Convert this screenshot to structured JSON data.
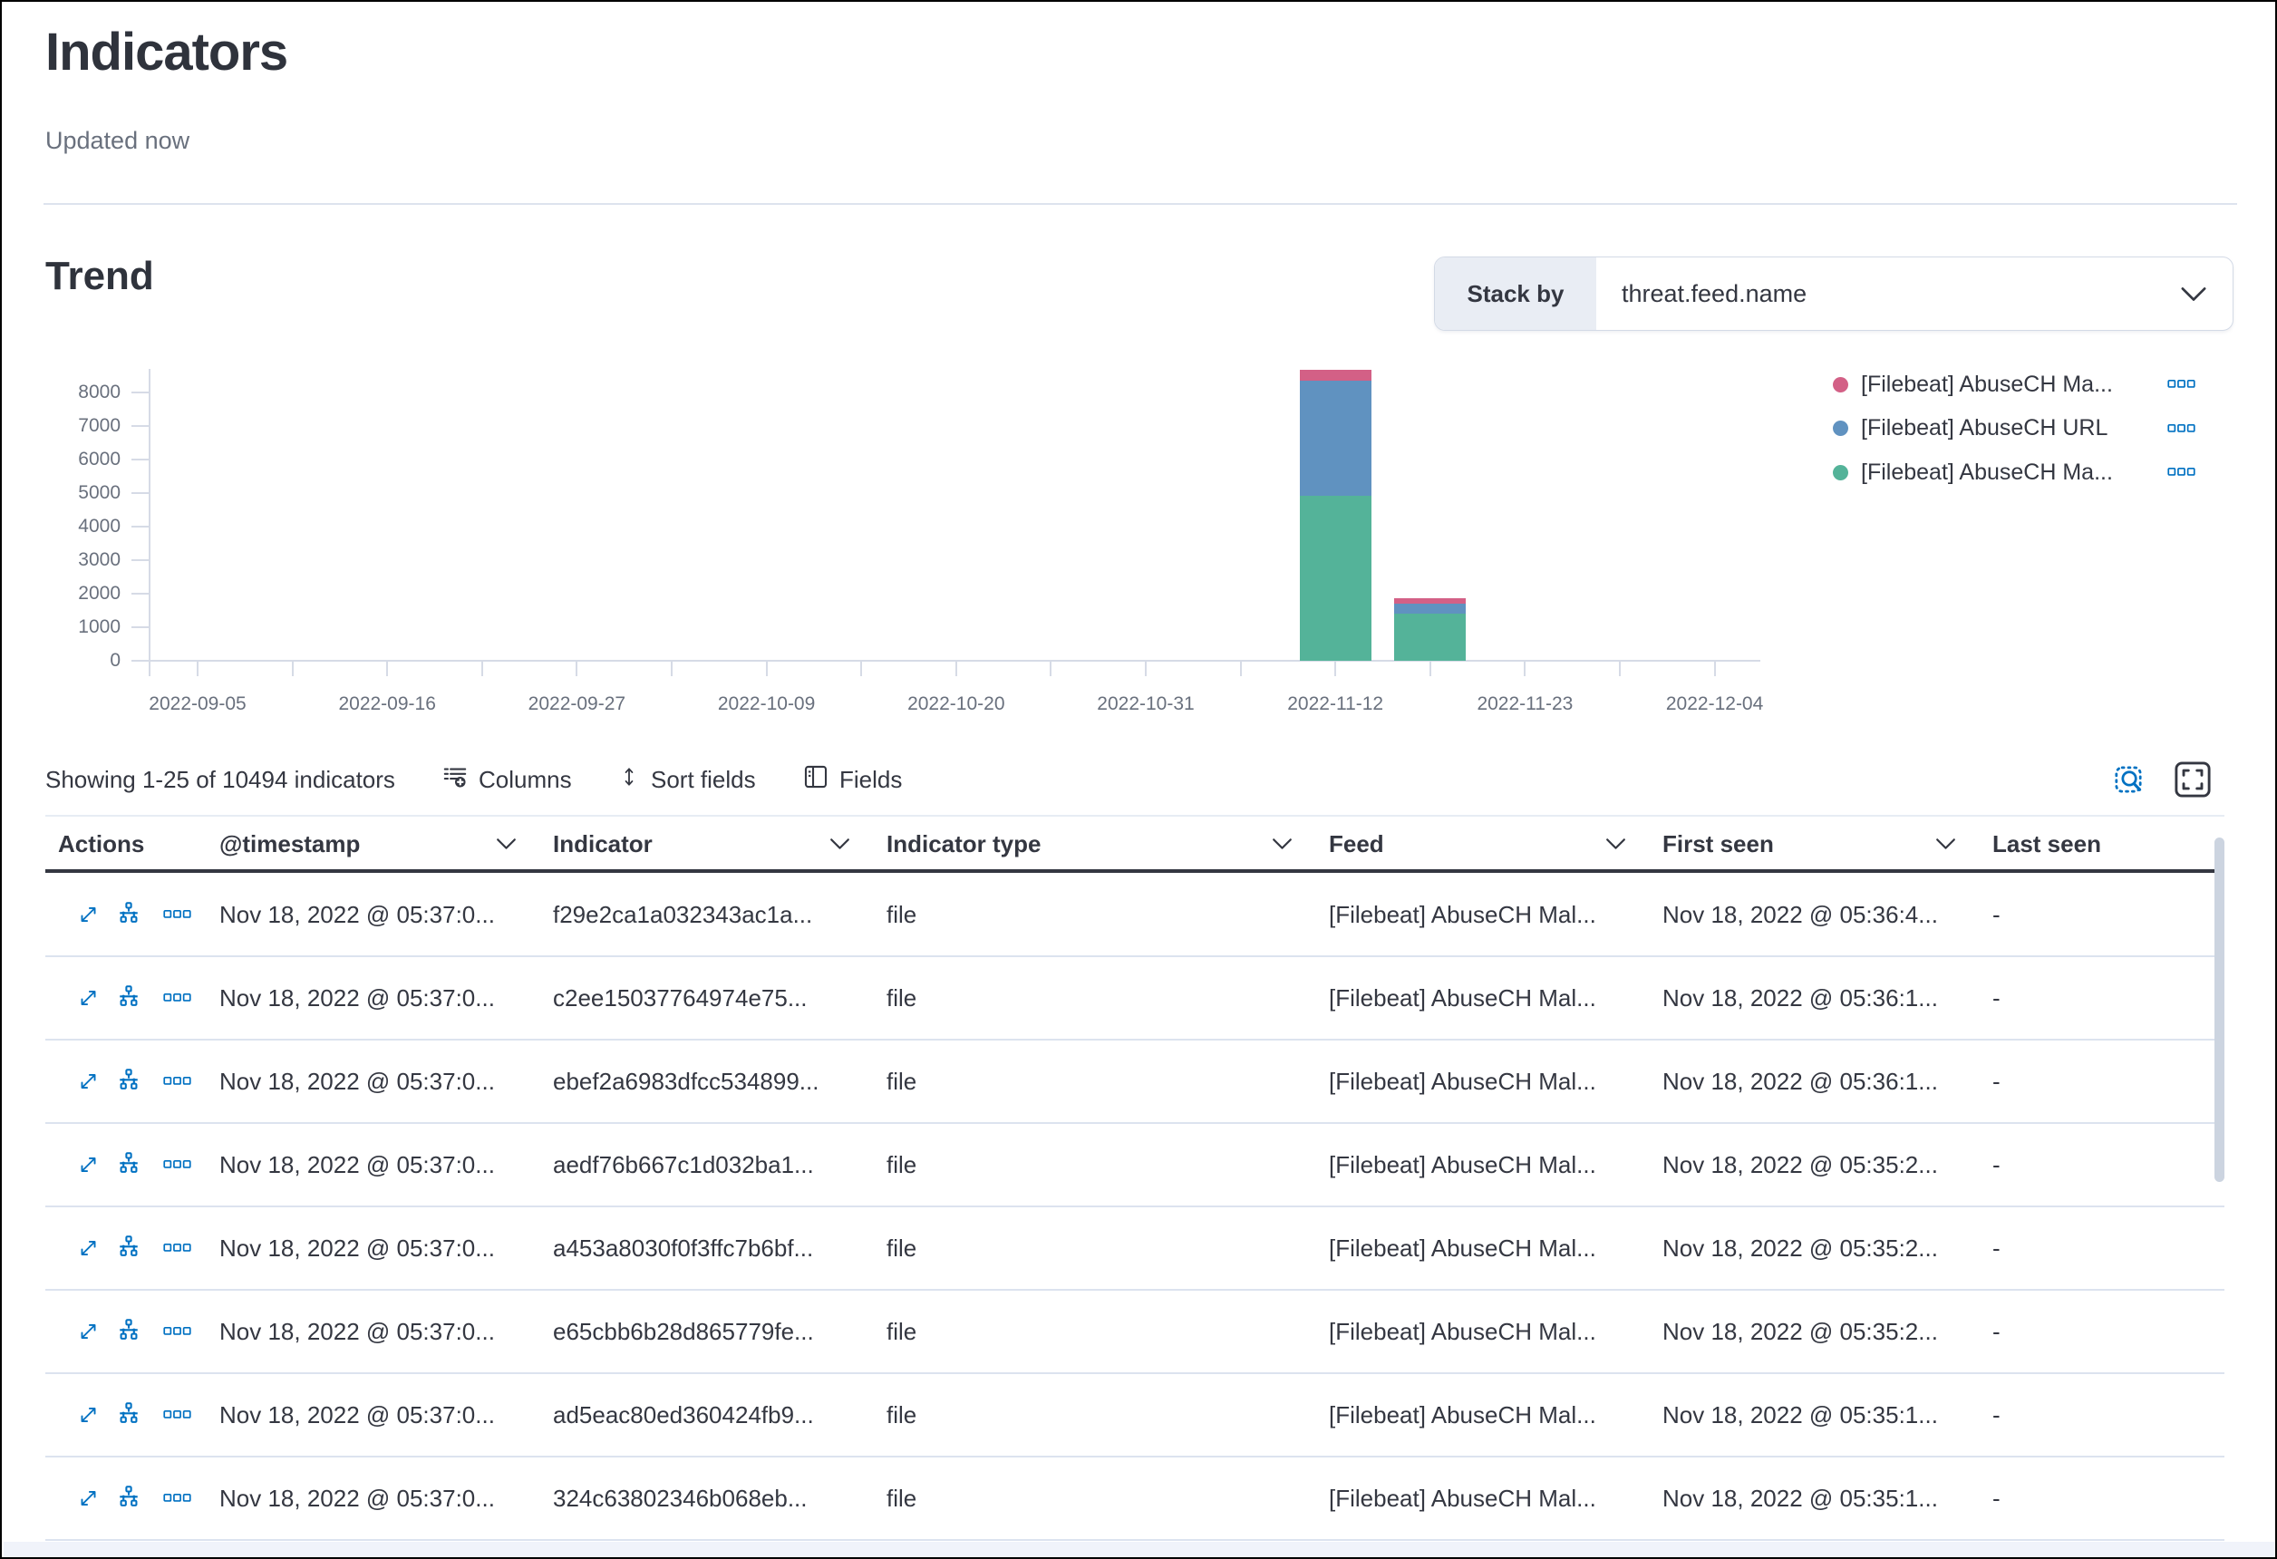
{
  "page": {
    "title": "Indicators",
    "subtitle": "Updated now"
  },
  "colors": {
    "accent_blue": "#0071c2",
    "text": "#343741",
    "subdued": "#69707d",
    "border": "#d3dae6",
    "header_underline": "#343741",
    "series_pink": "#D36086",
    "series_blue": "#6092C0",
    "series_green": "#54B399"
  },
  "trend": {
    "heading": "Trend",
    "stack_by_label": "Stack by",
    "stack_by_value": "threat.feed.name",
    "legend": [
      {
        "label": "[Filebeat] AbuseCH Ma...",
        "color": "#D36086",
        "action_icon": "more-actions-icon"
      },
      {
        "label": "[Filebeat] AbuseCH URL",
        "color": "#6092C0",
        "action_icon": "more-actions-icon"
      },
      {
        "label": "[Filebeat] AbuseCH Ma...",
        "color": "#54B399",
        "action_icon": "more-actions-icon"
      }
    ]
  },
  "chart_data": {
    "type": "bar",
    "stacked": true,
    "title": "Trend",
    "xlabel": "",
    "ylabel": "",
    "ylim": [
      0,
      8700
    ],
    "grid": false,
    "legend_position": "right",
    "y_tick_labels": [
      0,
      1000,
      2000,
      3000,
      4000,
      5000,
      6000,
      7000,
      8000
    ],
    "x_tick_labels": [
      "2022-09-05",
      "2022-09-16",
      "2022-09-27",
      "2022-10-09",
      "2022-10-20",
      "2022-10-31",
      "2022-11-12",
      "2022-11-23",
      "2022-12-04"
    ],
    "categories": [
      "2022-11-12",
      "2022-11-17"
    ],
    "bar_label_tick_positions": [
      6,
      6.5
    ],
    "series": [
      {
        "name": "[Filebeat] AbuseCH Ma...",
        "color": "#D36086",
        "values": [
          330,
          165
        ]
      },
      {
        "name": "[Filebeat] AbuseCH URL",
        "color": "#6092C0",
        "values": [
          3430,
          300
        ]
      },
      {
        "name": "[Filebeat] AbuseCH Ma...",
        "color": "#54B399",
        "values": [
          4925,
          1415
        ]
      }
    ]
  },
  "toolbar": {
    "showing": "Showing 1-25 of 10494 indicators",
    "columns_label": "Columns",
    "sort_label": "Sort fields",
    "fields_label": "Fields",
    "icons": [
      "columns-icon",
      "sort-icon",
      "fields-icon",
      "inspect-icon",
      "fullscreen-icon"
    ]
  },
  "table": {
    "headers": [
      {
        "label": "Actions",
        "arrow": false
      },
      {
        "label": "@timestamp",
        "arrow": true
      },
      {
        "label": "Indicator",
        "arrow": true
      },
      {
        "label": "Indicator type",
        "arrow": true
      },
      {
        "label": "Feed",
        "arrow": true
      },
      {
        "label": "First seen",
        "arrow": true
      },
      {
        "label": "Last seen",
        "arrow": false
      }
    ],
    "row_action_icons": [
      "expand-icon",
      "investigate-timeline-icon",
      "more-actions-icon"
    ],
    "rows": [
      {
        "timestamp": "Nov 18, 2022 @ 05:37:0...",
        "indicator": "f29e2ca1a032343ac1a...",
        "indicator_type": "file",
        "feed": "[Filebeat] AbuseCH Mal...",
        "first_seen": "Nov 18, 2022 @ 05:36:4...",
        "last_seen": "-"
      },
      {
        "timestamp": "Nov 18, 2022 @ 05:37:0...",
        "indicator": "c2ee15037764974e75...",
        "indicator_type": "file",
        "feed": "[Filebeat] AbuseCH Mal...",
        "first_seen": "Nov 18, 2022 @ 05:36:1...",
        "last_seen": "-"
      },
      {
        "timestamp": "Nov 18, 2022 @ 05:37:0...",
        "indicator": "ebef2a6983dfcc534899...",
        "indicator_type": "file",
        "feed": "[Filebeat] AbuseCH Mal...",
        "first_seen": "Nov 18, 2022 @ 05:36:1...",
        "last_seen": "-"
      },
      {
        "timestamp": "Nov 18, 2022 @ 05:37:0...",
        "indicator": "aedf76b667c1d032ba1...",
        "indicator_type": "file",
        "feed": "[Filebeat] AbuseCH Mal...",
        "first_seen": "Nov 18, 2022 @ 05:35:2...",
        "last_seen": "-"
      },
      {
        "timestamp": "Nov 18, 2022 @ 05:37:0...",
        "indicator": "a453a8030f0f3ffc7b6bf...",
        "indicator_type": "file",
        "feed": "[Filebeat] AbuseCH Mal...",
        "first_seen": "Nov 18, 2022 @ 05:35:2...",
        "last_seen": "-"
      },
      {
        "timestamp": "Nov 18, 2022 @ 05:37:0...",
        "indicator": "e65cbb6b28d865779fe...",
        "indicator_type": "file",
        "feed": "[Filebeat] AbuseCH Mal...",
        "first_seen": "Nov 18, 2022 @ 05:35:2...",
        "last_seen": "-"
      },
      {
        "timestamp": "Nov 18, 2022 @ 05:37:0...",
        "indicator": "ad5eac80ed360424fb9...",
        "indicator_type": "file",
        "feed": "[Filebeat] AbuseCH Mal...",
        "first_seen": "Nov 18, 2022 @ 05:35:1...",
        "last_seen": "-"
      },
      {
        "timestamp": "Nov 18, 2022 @ 05:37:0...",
        "indicator": "324c63802346b068eb...",
        "indicator_type": "file",
        "feed": "[Filebeat] AbuseCH Mal...",
        "first_seen": "Nov 18, 2022 @ 05:35:1...",
        "last_seen": "-"
      }
    ]
  }
}
